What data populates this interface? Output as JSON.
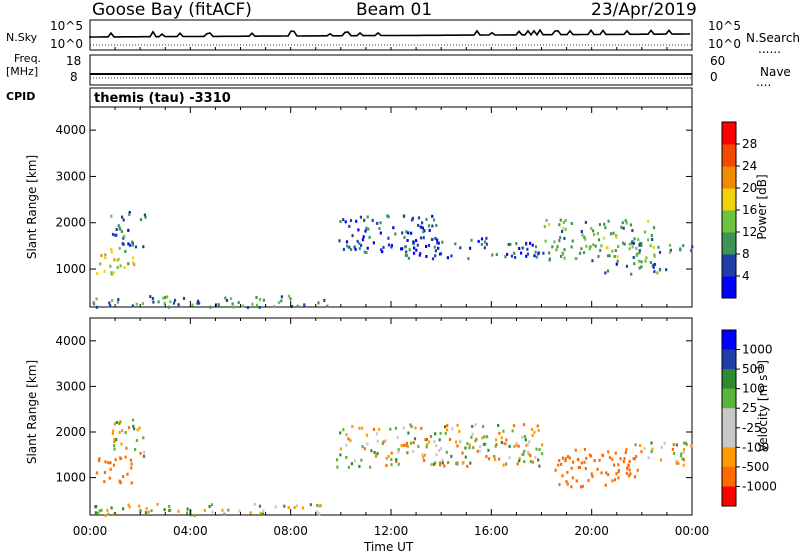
{
  "header": {
    "station": "Goose Bay (fitACF)",
    "beam": "Beam 01",
    "date": "23/Apr/2019"
  },
  "left_labels": {
    "nsky": "N.Sky",
    "freq_line1": "Freq.",
    "freq_line2": "[MHz]",
    "cpid": "CPID"
  },
  "right_labels": {
    "nsearch": "N.Search",
    "nave": "Nave",
    "dots": "......",
    "dots_short": "...."
  },
  "strip_ticks": {
    "nsky_left": [
      "10^5",
      "10^0"
    ],
    "nsky_right": [
      "10^5",
      "10^0"
    ],
    "freq_left": [
      "18",
      "8"
    ],
    "nave_right": [
      "60",
      "0"
    ]
  },
  "cpid_text": "themis (tau) -3310",
  "colors": {
    "power": [
      "#0000ff",
      "#1f3fa8",
      "#3e9454",
      "#6cc33c",
      "#f2d20a",
      "#f28a00",
      "#f04a00",
      "#ff0000"
    ],
    "velocity": [
      "#ff0000",
      "#ff6a00",
      "#ff9a00",
      "#c8c8c8",
      "#c8c8c8",
      "#5ab33a",
      "#2e8a2e",
      "#1f3fa8",
      "#0000ff"
    ]
  },
  "chart_data": [
    {
      "type": "heatmap",
      "title": "",
      "xlabel": "Time UT",
      "ylabel": "Slant Range [km]",
      "xlim": [
        "00:00",
        "24:00"
      ],
      "ylim": [
        180,
        4500
      ],
      "x_tick_labels": [
        "00:00",
        "04:00",
        "08:00",
        "12:00",
        "16:00",
        "20:00",
        "00:00"
      ],
      "y_tick_labels": [
        "1000",
        "2000",
        "3000",
        "4000"
      ],
      "colorbar": {
        "label": "Power [dB]",
        "ticks": [
          "4",
          "8",
          "12",
          "16",
          "20",
          "24",
          "28"
        ],
        "range": [
          0,
          30
        ]
      },
      "regions": [
        {
          "t": [
            0.2,
            1.8
          ],
          "range": [
            900,
            1500
          ],
          "level": 16
        },
        {
          "t": [
            0.8,
            2.2
          ],
          "range": [
            1500,
            2300
          ],
          "level": 8
        },
        {
          "t": [
            0.1,
            9.5
          ],
          "range": [
            200,
            450
          ],
          "level": 10
        },
        {
          "t": [
            9.8,
            14.0
          ],
          "range": [
            1350,
            2200
          ],
          "level": 6
        },
        {
          "t": [
            12.5,
            18.0
          ],
          "range": [
            1250,
            1700
          ],
          "level": 6
        },
        {
          "t": [
            18.0,
            22.5
          ],
          "range": [
            1200,
            2100
          ],
          "level": 12
        },
        {
          "t": [
            21.5,
            24.0
          ],
          "range": [
            1300,
            1700
          ],
          "level": 10
        },
        {
          "t": [
            20.5,
            23.0
          ],
          "range": [
            900,
            1200
          ],
          "level": 8
        }
      ]
    },
    {
      "type": "heatmap",
      "title": "",
      "xlabel": "Time UT",
      "ylabel": "Slant Range [km]",
      "xlim": [
        "00:00",
        "24:00"
      ],
      "ylim": [
        180,
        4500
      ],
      "x_tick_labels": [
        "00:00",
        "04:00",
        "08:00",
        "12:00",
        "16:00",
        "20:00",
        "00:00"
      ],
      "y_tick_labels": [
        "1000",
        "2000",
        "3000",
        "4000"
      ],
      "colorbar": {
        "label": "Velocity [m s^-1]",
        "ticks": [
          "1000",
          "500",
          "100",
          "25",
          "-25",
          "-100",
          "-500",
          "-1000"
        ],
        "range": [
          -1000,
          1000
        ]
      },
      "regions": [
        {
          "t": [
            0.2,
            1.8
          ],
          "range": [
            900,
            1500
          ],
          "level": -300
        },
        {
          "t": [
            0.8,
            2.2
          ],
          "range": [
            1500,
            2300
          ],
          "level": 0
        },
        {
          "t": [
            0.1,
            9.5
          ],
          "range": [
            200,
            450
          ],
          "level": 50
        },
        {
          "t": [
            9.8,
            18.0
          ],
          "range": [
            1250,
            2200
          ],
          "level": 0
        },
        {
          "t": [
            18.5,
            21.8
          ],
          "range": [
            800,
            1700
          ],
          "level": -300
        },
        {
          "t": [
            21.5,
            24.0
          ],
          "range": [
            1300,
            1800
          ],
          "level": 0
        }
      ]
    }
  ]
}
